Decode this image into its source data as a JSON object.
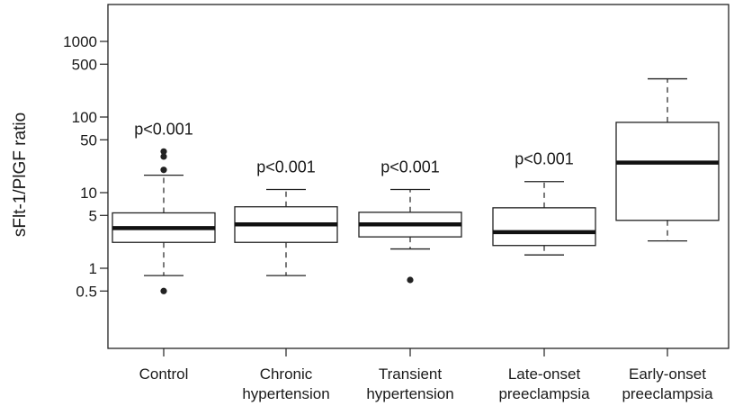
{
  "chart_data": {
    "type": "boxplot",
    "ylabel": "sFlt-1/PlGF ratio",
    "xlabel": "",
    "yscale": "log",
    "ylim": [
      0.08,
      2000
    ],
    "yticks": [
      {
        "value": 1000,
        "label": "1000"
      },
      {
        "value": 500,
        "label": "500"
      },
      {
        "value": 100,
        "label": "100"
      },
      {
        "value": 50,
        "label": "50"
      },
      {
        "value": 10,
        "label": "10"
      },
      {
        "value": 5,
        "label": "5"
      },
      {
        "value": 1,
        "label": "1"
      },
      {
        "value": 0.5,
        "label": "0.5"
      }
    ],
    "categories": [
      {
        "lines": [
          "Control"
        ]
      },
      {
        "lines": [
          "Chronic",
          "hypertension"
        ]
      },
      {
        "lines": [
          "Transient",
          "hypertension"
        ]
      },
      {
        "lines": [
          "Late-onset",
          "preeclampsia"
        ]
      },
      {
        "lines": [
          "Early-onset",
          "preeclampsia"
        ]
      }
    ],
    "boxes": [
      {
        "whisker_low": 0.8,
        "q1": 2.2,
        "median": 3.4,
        "q3": 5.4,
        "whisker_high": 17,
        "outliers": [
          35,
          30,
          20,
          0.5
        ],
        "annotation": "p<0.001"
      },
      {
        "whisker_low": 0.8,
        "q1": 2.2,
        "median": 3.8,
        "q3": 6.5,
        "whisker_high": 11,
        "outliers": [],
        "annotation": "p<0.001"
      },
      {
        "whisker_low": 1.8,
        "q1": 2.6,
        "median": 3.8,
        "q3": 5.5,
        "whisker_high": 11,
        "outliers": [
          0.7
        ],
        "annotation": "p<0.001"
      },
      {
        "whisker_low": 1.5,
        "q1": 2.0,
        "median": 3.0,
        "q3": 6.3,
        "whisker_high": 14,
        "outliers": [],
        "annotation": "p<0.001"
      },
      {
        "whisker_low": 2.3,
        "q1": 4.3,
        "median": 25,
        "q3": 85,
        "whisker_high": 320,
        "outliers": [],
        "annotation": ""
      }
    ]
  }
}
